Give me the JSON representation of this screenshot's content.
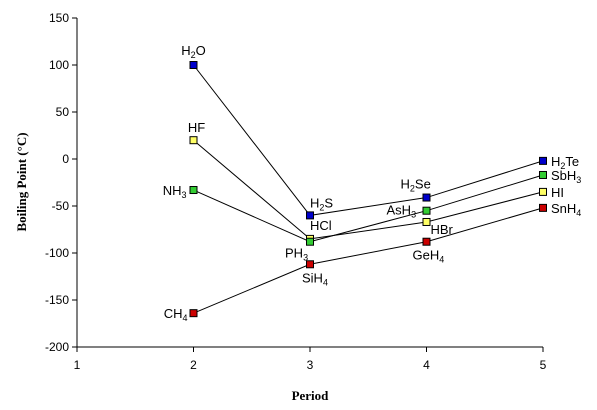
{
  "chart_data": {
    "type": "line",
    "xlabel": "Period",
    "ylabel": "Boiling Point (°C)",
    "xlim": [
      1,
      5
    ],
    "ylim": [
      -200,
      150
    ],
    "x_ticks": [
      "1",
      "2",
      "3",
      "4",
      "5"
    ],
    "y_ticks": [
      "150",
      "100",
      "50",
      "0",
      "-50",
      "-100",
      "-150",
      "-200"
    ],
    "grid": false,
    "legend": "none",
    "series": [
      {
        "color": "#0000cc",
        "points": [
          {
            "x": 2,
            "y": 100,
            "label": "H",
            "sub": "2",
            "after": "O"
          },
          {
            "x": 3,
            "y": -60,
            "label": "H",
            "sub": "2",
            "after": "S"
          },
          {
            "x": 4,
            "y": -41,
            "label": "H",
            "sub": "2",
            "after": "Se"
          },
          {
            "x": 5,
            "y": -2,
            "label": "H",
            "sub": "2",
            "after": "Te"
          }
        ]
      },
      {
        "color": "#ffff66",
        "points": [
          {
            "x": 2,
            "y": 20,
            "label": "HF",
            "sub": "",
            "after": ""
          },
          {
            "x": 3,
            "y": -85,
            "label": "HCl",
            "sub": "",
            "after": ""
          },
          {
            "x": 4,
            "y": -67,
            "label": "HBr",
            "sub": "",
            "after": ""
          },
          {
            "x": 5,
            "y": -35,
            "label": "HI",
            "sub": "",
            "after": ""
          }
        ]
      },
      {
        "color": "#33cc33",
        "points": [
          {
            "x": 2,
            "y": -33,
            "label": "NH",
            "sub": "3",
            "after": ""
          },
          {
            "x": 3,
            "y": -88,
            "label": "PH",
            "sub": "3",
            "after": ""
          },
          {
            "x": 4,
            "y": -55,
            "label": "AsH",
            "sub": "3",
            "after": ""
          },
          {
            "x": 5,
            "y": -17,
            "label": "SbH",
            "sub": "3",
            "after": ""
          }
        ]
      },
      {
        "color": "#cc0000",
        "points": [
          {
            "x": 2,
            "y": -164,
            "label": "CH",
            "sub": "4",
            "after": ""
          },
          {
            "x": 3,
            "y": -112,
            "label": "SiH",
            "sub": "4",
            "after": ""
          },
          {
            "x": 4,
            "y": -88,
            "label": "GeH",
            "sub": "4",
            "after": ""
          },
          {
            "x": 5,
            "y": -52,
            "label": "SnH",
            "sub": "4",
            "after": ""
          }
        ]
      }
    ]
  }
}
